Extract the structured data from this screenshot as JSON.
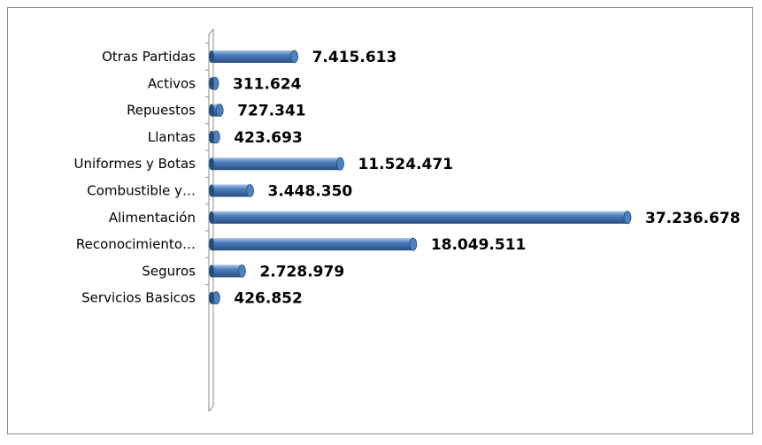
{
  "chart_data": {
    "type": "bar",
    "orientation": "horizontal",
    "style": "3d-cylinder",
    "title": "",
    "xlabel": "",
    "ylabel": "",
    "categories": [
      "Otras Partidas",
      "Activos",
      "Repuestos",
      "Llantas",
      "Uniformes y Botas",
      "Combustible y…",
      "Alimentación",
      "Reconocimiento…",
      "Seguros",
      "Servicios Basicos"
    ],
    "values": [
      7415613,
      311624,
      727341,
      423693,
      11524471,
      3448350,
      37236678,
      18049511,
      2728979,
      426852
    ],
    "value_labels": [
      "7.415.613",
      "311.624",
      "727.341",
      "423.693",
      "11.524.471",
      "3.448.350",
      "37.236.678",
      "18.049.511",
      "2.728.979",
      "426.852"
    ],
    "xlim": [
      0,
      37236678
    ],
    "grid": false,
    "legend": "none",
    "colors": {
      "bar_fill": "#4f81bd",
      "bar_dark": "#254d7f",
      "bar_light": "#a7c3e8",
      "axis": "#8c8c8c",
      "frame": "#8c8c8c"
    }
  }
}
